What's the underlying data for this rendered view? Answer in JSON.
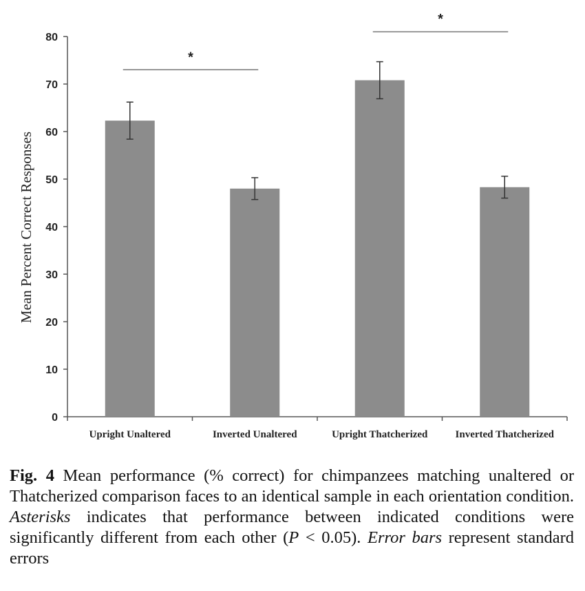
{
  "chart_data": {
    "type": "bar",
    "categories": [
      "Upright Unaltered",
      "Inverted Unaltered",
      "Upright Thatcherized",
      "Inverted Thatcherized"
    ],
    "values": [
      62.3,
      48.0,
      70.8,
      48.3
    ],
    "errors": [
      3.9,
      2.3,
      3.9,
      2.3
    ],
    "ylabel": "Mean Percent Correct Responses",
    "xlabel": "",
    "ylim": [
      0,
      80
    ],
    "yticks": [
      0,
      10,
      20,
      30,
      40,
      50,
      60,
      70,
      80
    ],
    "bar_color": "#8c8c8c",
    "significance": [
      {
        "from": 0,
        "to": 1,
        "y": 73,
        "marker": "*"
      },
      {
        "from": 2,
        "to": 3,
        "y": 81,
        "marker": "*"
      }
    ]
  },
  "caption": {
    "fig_label": "Fig. 4",
    "text1": " Mean performance (% correct) for chimpanzees matching unaltered or Thatcherized comparison faces to an identical sample in each orientation condition. ",
    "italic1": "Asterisks",
    "text2": " indicates that performance between indicated conditions were significantly different from each other (",
    "italic2": "P",
    "text3": " < 0.05). ",
    "italic3": "Error bars",
    "text4": " represent standard errors"
  }
}
